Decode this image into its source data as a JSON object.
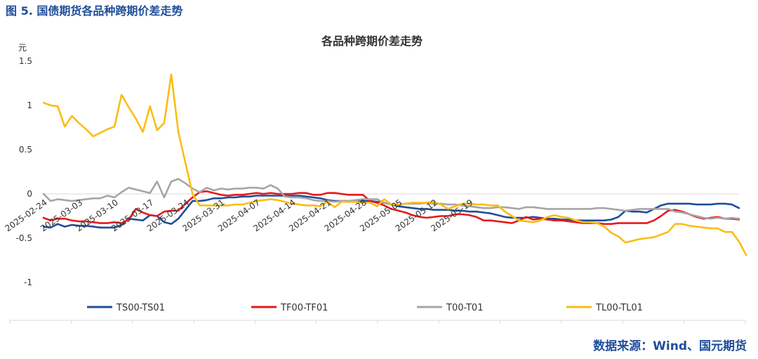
{
  "figure_title": "图 5. 国债期货各品种跨期价差走势",
  "source": "数据来源：Wind、国元期货",
  "chart_data": {
    "type": "line",
    "title": "各品种跨期价差走势",
    "ylabel": "元",
    "ylim": [
      -1,
      1.5
    ],
    "yticks": [
      -1,
      -0.5,
      0,
      0.5,
      1,
      1.5
    ],
    "ytick_labels": [
      "-1",
      "-0.5",
      "0",
      "0.5",
      "1",
      "1.5"
    ],
    "xtick_labels": [
      "2025-02-24",
      "2025-03-03",
      "2025-03-10",
      "2025-03-17",
      "2025-03-24",
      "2025-03-31",
      "2025-04-07",
      "2025-04-14",
      "2025-04-21",
      "2025-04-28",
      "2025-05-05",
      "2025-05-12",
      "2025-05-19"
    ],
    "legend_position": "bottom",
    "series": [
      {
        "name": "TS00-TS01",
        "color": "#1f4e9a",
        "values": [
          -0.37,
          -0.38,
          -0.34,
          -0.37,
          -0.35,
          -0.36,
          -0.36,
          -0.37,
          -0.38,
          -0.38,
          -0.38,
          -0.35,
          -0.28,
          -0.29,
          -0.3,
          -0.24,
          -0.25,
          -0.32,
          -0.34,
          -0.28,
          -0.18,
          -0.08,
          -0.08,
          -0.07,
          -0.05,
          -0.05,
          -0.04,
          -0.04,
          -0.03,
          -0.03,
          -0.02,
          -0.02,
          -0.02,
          -0.02,
          -0.02,
          -0.02,
          -0.02,
          -0.03,
          -0.04,
          -0.05,
          -0.07,
          -0.08,
          -0.08,
          -0.08,
          -0.09,
          -0.08,
          -0.08,
          -0.09,
          -0.1,
          -0.12,
          -0.14,
          -0.15,
          -0.16,
          -0.17,
          -0.17,
          -0.18,
          -0.18,
          -0.18,
          -0.19,
          -0.19,
          -0.2,
          -0.2,
          -0.21,
          -0.22,
          -0.24,
          -0.26,
          -0.27,
          -0.27,
          -0.27,
          -0.26,
          -0.27,
          -0.28,
          -0.28,
          -0.29,
          -0.29,
          -0.3,
          -0.3,
          -0.3,
          -0.3,
          -0.3,
          -0.29,
          -0.26,
          -0.19,
          -0.2,
          -0.2,
          -0.21,
          -0.17,
          -0.13,
          -0.11,
          -0.11,
          -0.11,
          -0.11,
          -0.12,
          -0.12,
          -0.12,
          -0.11,
          -0.11,
          -0.12,
          -0.16
        ]
      },
      {
        "name": "TF00-TF01",
        "color": "#e8191d",
        "values": [
          -0.27,
          -0.3,
          -0.28,
          -0.28,
          -0.3,
          -0.31,
          -0.31,
          -0.32,
          -0.33,
          -0.33,
          -0.32,
          -0.33,
          -0.29,
          -0.17,
          -0.21,
          -0.24,
          -0.25,
          -0.2,
          -0.19,
          -0.19,
          -0.11,
          -0.04,
          0.02,
          0.03,
          0.01,
          -0.01,
          -0.02,
          -0.01,
          -0.01,
          0.0,
          0.01,
          0.0,
          0.01,
          0.0,
          0.0,
          0.0,
          0.01,
          0.01,
          -0.01,
          -0.01,
          0.01,
          0.01,
          0.0,
          -0.01,
          -0.01,
          -0.01,
          -0.08,
          -0.1,
          -0.13,
          -0.17,
          -0.19,
          -0.21,
          -0.24,
          -0.26,
          -0.27,
          -0.26,
          -0.25,
          -0.25,
          -0.23,
          -0.23,
          -0.24,
          -0.26,
          -0.3,
          -0.3,
          -0.31,
          -0.32,
          -0.33,
          -0.3,
          -0.26,
          -0.29,
          -0.28,
          -0.29,
          -0.3,
          -0.3,
          -0.31,
          -0.32,
          -0.33,
          -0.33,
          -0.33,
          -0.34,
          -0.34,
          -0.33,
          -0.33,
          -0.33,
          -0.33,
          -0.33,
          -0.3,
          -0.25,
          -0.19,
          -0.18,
          -0.2,
          -0.23,
          -0.26,
          -0.28,
          -0.27,
          -0.26,
          -0.28,
          -0.28,
          -0.29
        ]
      },
      {
        "name": "T00-T01",
        "color": "#a6a6a6",
        "values": [
          0.0,
          -0.08,
          -0.06,
          -0.07,
          -0.08,
          -0.07,
          -0.06,
          -0.05,
          -0.05,
          -0.02,
          -0.04,
          0.02,
          0.07,
          0.05,
          0.03,
          0.01,
          0.14,
          -0.04,
          0.14,
          0.17,
          0.12,
          0.06,
          0.02,
          0.07,
          0.04,
          0.06,
          0.05,
          0.06,
          0.06,
          0.07,
          0.07,
          0.06,
          0.1,
          0.06,
          -0.03,
          -0.04,
          -0.04,
          -0.05,
          -0.07,
          -0.08,
          -0.08,
          -0.09,
          -0.08,
          -0.08,
          -0.07,
          -0.06,
          -0.06,
          -0.06,
          -0.1,
          -0.12,
          -0.12,
          -0.11,
          -0.11,
          -0.11,
          -0.1,
          -0.11,
          -0.11,
          -0.12,
          -0.12,
          -0.13,
          -0.14,
          -0.15,
          -0.16,
          -0.16,
          -0.15,
          -0.15,
          -0.16,
          -0.17,
          -0.15,
          -0.15,
          -0.16,
          -0.17,
          -0.17,
          -0.17,
          -0.17,
          -0.17,
          -0.17,
          -0.17,
          -0.16,
          -0.16,
          -0.17,
          -0.18,
          -0.19,
          -0.18,
          -0.17,
          -0.17,
          -0.17,
          -0.17,
          -0.17,
          -0.2,
          -0.21,
          -0.23,
          -0.25,
          -0.27,
          -0.28,
          -0.27,
          -0.28,
          -0.27,
          -0.28
        ]
      },
      {
        "name": "TL00-TL01",
        "color": "#fbbd13",
        "values": [
          1.03,
          1.0,
          0.99,
          0.76,
          0.88,
          0.8,
          0.73,
          0.65,
          0.69,
          0.73,
          0.76,
          1.12,
          0.98,
          0.85,
          0.7,
          0.99,
          0.72,
          0.8,
          1.35,
          0.7,
          0.35,
          0.0,
          -0.13,
          -0.13,
          -0.13,
          -0.13,
          -0.13,
          -0.12,
          -0.12,
          -0.1,
          -0.08,
          -0.07,
          -0.06,
          -0.07,
          -0.09,
          -0.11,
          -0.12,
          -0.13,
          -0.13,
          -0.14,
          -0.09,
          -0.15,
          -0.09,
          -0.09,
          -0.09,
          -0.1,
          -0.1,
          -0.14,
          -0.06,
          -0.12,
          -0.12,
          -0.11,
          -0.1,
          -0.1,
          -0.1,
          -0.09,
          -0.12,
          -0.17,
          -0.14,
          -0.11,
          -0.11,
          -0.12,
          -0.12,
          -0.13,
          -0.13,
          -0.2,
          -0.25,
          -0.3,
          -0.31,
          -0.32,
          -0.3,
          -0.26,
          -0.24,
          -0.26,
          -0.27,
          -0.3,
          -0.32,
          -0.32,
          -0.33,
          -0.37,
          -0.44,
          -0.48,
          -0.55,
          -0.53,
          -0.51,
          -0.5,
          -0.49,
          -0.46,
          -0.43,
          -0.34,
          -0.34,
          -0.36,
          -0.37,
          -0.38,
          -0.39,
          -0.39,
          -0.43,
          -0.43,
          -0.54,
          -0.69
        ]
      }
    ]
  }
}
